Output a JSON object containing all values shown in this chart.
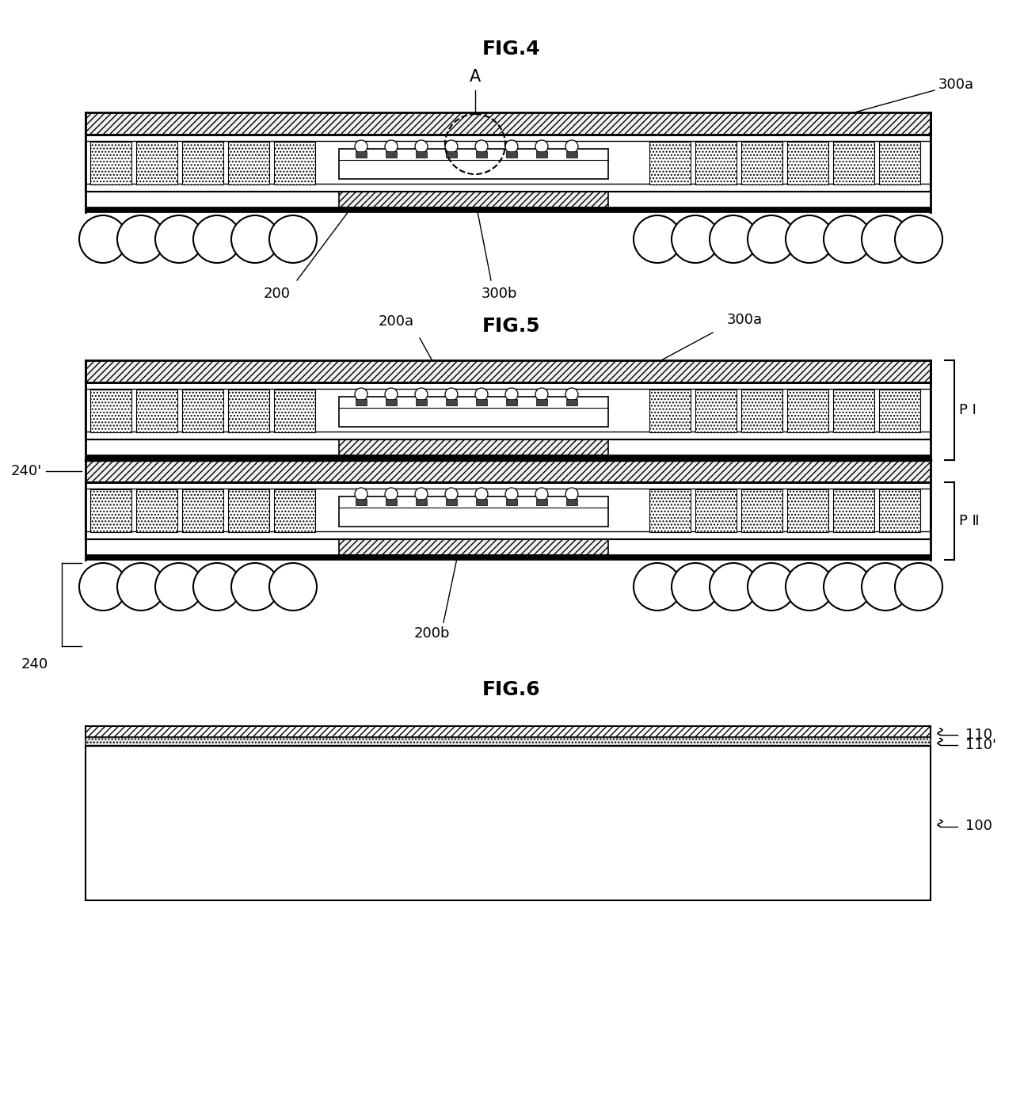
{
  "fig4_title": "FIG.4",
  "fig5_title": "FIG.5",
  "fig6_title": "FIG.6",
  "bg": "#ffffff",
  "lc": "#000000",
  "label_fs": 13,
  "title_fs": 18,
  "labels": {
    "A": "A",
    "f4_300a": "300a",
    "f4_200": "200",
    "f4_300b": "300b",
    "f5_200a": "200a",
    "f5_300a": "300a",
    "f5_240p": "240'",
    "f5_PI": "P Ⅰ",
    "f5_PII": "P Ⅱ",
    "f5_200b": "200b",
    "f5_240": "240",
    "f6_110": "110",
    "f6_110p": "110'",
    "f6_100": "100"
  }
}
